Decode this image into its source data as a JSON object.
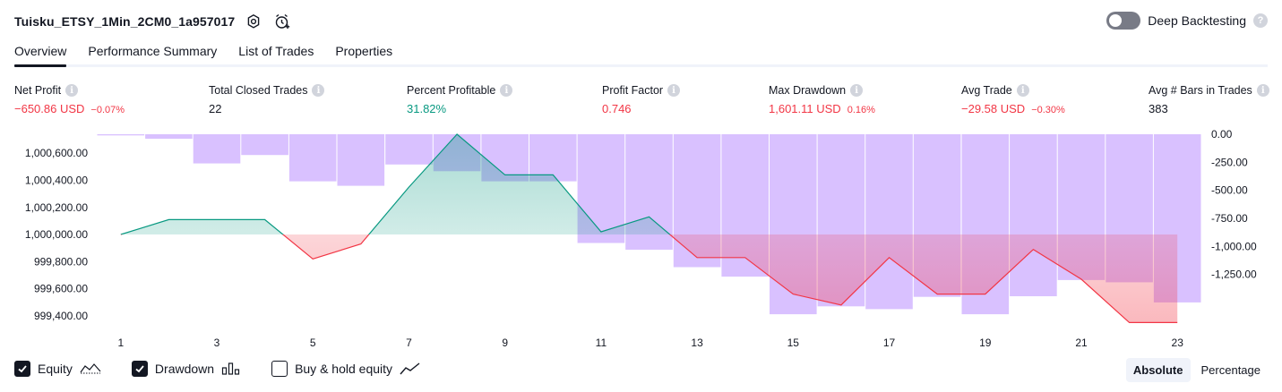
{
  "header": {
    "title": "Tuisku_ETSY_1Min_2CM0_1a957017",
    "deep_backtesting_label": "Deep Backtesting",
    "help_glyph": "?"
  },
  "tabs": [
    {
      "label": "Overview",
      "active": true
    },
    {
      "label": "Performance Summary",
      "active": false
    },
    {
      "label": "List of Trades",
      "active": false
    },
    {
      "label": "Properties",
      "active": false
    }
  ],
  "metrics": [
    {
      "label": "Net Profit",
      "value": "−650.86 USD",
      "sub": "−0.07%",
      "color": "red"
    },
    {
      "label": "Total Closed Trades",
      "value": "22",
      "sub": "",
      "color": "neutral"
    },
    {
      "label": "Percent Profitable",
      "value": "31.82%",
      "sub": "",
      "color": "green"
    },
    {
      "label": "Profit Factor",
      "value": "0.746",
      "sub": "",
      "color": "red"
    },
    {
      "label": "Max Drawdown",
      "value": "1,601.11 USD",
      "sub": "0.16%",
      "color": "red"
    },
    {
      "label": "Avg Trade",
      "value": "−29.58 USD",
      "sub": "−0.30%",
      "color": "red"
    },
    {
      "label": "Avg # Bars in Trades",
      "value": "383",
      "sub": "",
      "color": "neutral"
    }
  ],
  "legend": {
    "equity_label": "Equity",
    "drawdown_label": "Drawdown",
    "buyhold_label": "Buy & hold equity",
    "equity_checked": true,
    "drawdown_checked": true,
    "buyhold_checked": false
  },
  "modes": {
    "absolute_label": "Absolute",
    "percentage_label": "Percentage",
    "active": "absolute"
  },
  "colors": {
    "profit": "#089981",
    "loss": "#f23645",
    "drawdown": "#d1b3ff",
    "text": "#131722",
    "muted": "#d1d4dc"
  },
  "chart_data": {
    "type": "area",
    "x": [
      1,
      2,
      3,
      4,
      5,
      6,
      7,
      8,
      9,
      10,
      11,
      12,
      13,
      14,
      15,
      16,
      17,
      18,
      19,
      20,
      21,
      22,
      23
    ],
    "x_tick_labels": [
      "1",
      "3",
      "5",
      "7",
      "9",
      "11",
      "13",
      "15",
      "17",
      "19",
      "21",
      "23"
    ],
    "series": [
      {
        "name": "Equity",
        "axis": "left",
        "values": [
          1000000,
          1000110,
          1000110,
          1000110,
          999820,
          999930,
          1000350,
          1000740,
          1000440,
          1000440,
          1000020,
          1000130,
          999830,
          999830,
          999560,
          999480,
          999830,
          999560,
          999560,
          999890,
          999670,
          999350,
          999350
        ]
      },
      {
        "name": "Drawdown",
        "axis": "right",
        "values": [
          -10,
          -40,
          -260,
          -185,
          -420,
          -460,
          -270,
          -330,
          -420,
          -420,
          -970,
          -1030,
          -1185,
          -1270,
          -1605,
          -1535,
          -1560,
          -1450,
          -1605,
          -1445,
          -1300,
          -1320,
          -1500
        ]
      }
    ],
    "left_axis": {
      "range": [
        999300,
        1000740
      ],
      "ticks": [
        1000600,
        1000400,
        1000200,
        1000000,
        999800,
        999600,
        999400
      ],
      "tick_labels": [
        "1,000,600.00",
        "1,000,400.00",
        "1,000,200.00",
        "1,000,000.00",
        "999,800.00",
        "999,600.00",
        "999,400.00"
      ]
    },
    "right_axis": {
      "range": [
        -1740,
        0
      ],
      "ticks": [
        0,
        -250,
        -500,
        -750,
        -1000,
        -1250
      ],
      "tick_labels": [
        "0.00",
        "-250.00",
        "-500.00",
        "-750.00",
        "-1,000.00",
        "-1,250.00"
      ]
    },
    "baseline": 1000000,
    "grid": false
  }
}
